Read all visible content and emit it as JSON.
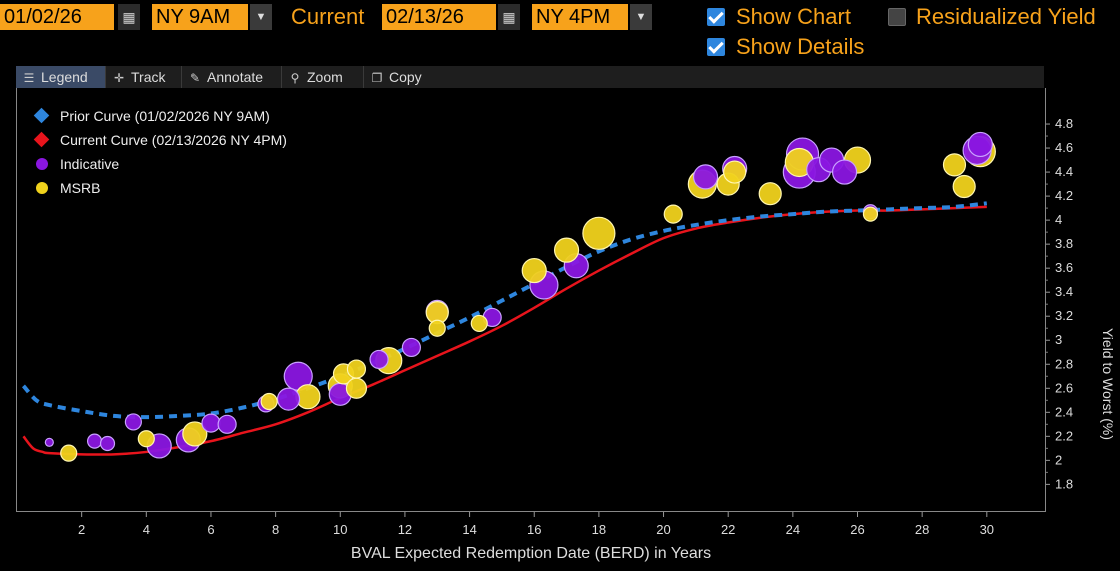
{
  "controls": {
    "start_date": "01/02/26",
    "start_time": "NY 9AM",
    "current_label": "Current",
    "end_date": "02/13/26",
    "end_time": "NY 4PM",
    "show_chart_label": "Show Chart",
    "show_chart_checked": true,
    "residualized_label": "Residualized Yield",
    "residualized_checked": false,
    "show_details_label": "Show Details",
    "show_details_checked": true
  },
  "toolbar": {
    "legend": "Legend",
    "track": "Track",
    "annotate": "Annotate",
    "zoom": "Zoom",
    "copy": "Copy"
  },
  "colors": {
    "accent": "#f7a21b",
    "prior_curve": "#2e86de",
    "current_curve": "#e8141c",
    "indicative": "#8a16e0",
    "msrb": "#f0d21c"
  },
  "chart_data": {
    "type": "scatter",
    "xlabel": "BVAL Expected Redemption Date (BERD) in Years",
    "ylabel": "Yield to Worst (%)",
    "xlim": [
      0,
      31.8
    ],
    "ylim": [
      1.57,
      5.1
    ],
    "x_ticks": [
      2,
      4,
      6,
      8,
      10,
      12,
      14,
      16,
      18,
      20,
      22,
      24,
      26,
      28,
      30
    ],
    "y_ticks": [
      1.8,
      2,
      2.2,
      2.4,
      2.6,
      2.8,
      3,
      3.2,
      3.4,
      3.6,
      3.8,
      4,
      4.2,
      4.4,
      4.6,
      4.8
    ],
    "y_tick_labels": [
      "1.8",
      "2",
      "2.2",
      "2.4",
      "2.6",
      "2.8",
      "3",
      "3.2",
      "3.4",
      "3.6",
      "3.8",
      "4",
      "4.2",
      "4.4",
      "4.6",
      "4.8"
    ],
    "legend_position": "top-left",
    "legend": [
      {
        "label": "Prior Curve (01/02/2026 NY 9AM)",
        "marker": "diamond",
        "color": "#2e86de"
      },
      {
        "label": "Current Curve (02/13/2026 NY 4PM)",
        "marker": "diamond",
        "color": "#e8141c"
      },
      {
        "label": "Indicative",
        "marker": "circle",
        "color": "#8a16e0"
      },
      {
        "label": "MSRB",
        "marker": "circle",
        "color": "#f0d21c"
      }
    ],
    "series": [
      {
        "name": "Prior Curve (01/02/2026 NY 9AM)",
        "kind": "line",
        "style": "dashed",
        "color": "#2e86de",
        "x": [
          0.2,
          0.6,
          1,
          2,
          3,
          4,
          5,
          6,
          7,
          8,
          9,
          10,
          11,
          12,
          13,
          14,
          15,
          16,
          17,
          18,
          19,
          20,
          21,
          22,
          23,
          24,
          25,
          26,
          27,
          28,
          29,
          30
        ],
        "y": [
          2.62,
          2.5,
          2.46,
          2.41,
          2.37,
          2.36,
          2.37,
          2.39,
          2.44,
          2.51,
          2.6,
          2.7,
          2.81,
          2.93,
          3.06,
          3.19,
          3.33,
          3.47,
          3.61,
          3.74,
          3.84,
          3.91,
          3.96,
          4.0,
          4.03,
          4.05,
          4.07,
          4.08,
          4.09,
          4.1,
          4.11,
          4.14
        ]
      },
      {
        "name": "Current Curve (02/13/2026 NY 4PM)",
        "kind": "line",
        "style": "solid",
        "color": "#e8141c",
        "x": [
          0.2,
          0.5,
          0.8,
          1,
          2,
          3,
          4,
          5,
          6,
          7,
          8,
          9,
          10,
          11,
          12,
          13,
          14,
          15,
          16,
          17,
          18,
          19,
          20,
          21,
          22,
          23,
          24,
          25,
          26,
          27,
          28,
          29,
          30
        ],
        "y": [
          2.2,
          2.1,
          2.07,
          2.06,
          2.05,
          2.05,
          2.07,
          2.11,
          2.16,
          2.23,
          2.3,
          2.4,
          2.52,
          2.63,
          2.75,
          2.87,
          2.99,
          3.12,
          3.27,
          3.43,
          3.58,
          3.72,
          3.85,
          3.93,
          3.98,
          4.02,
          4.05,
          4.07,
          4.08,
          4.08,
          4.09,
          4.1,
          4.11
        ]
      },
      {
        "name": "Indicative",
        "kind": "scatter",
        "color": "#8a16e0",
        "points": [
          {
            "x": 1.0,
            "y": 2.15,
            "r": 4
          },
          {
            "x": 2.4,
            "y": 2.16,
            "r": 7
          },
          {
            "x": 2.8,
            "y": 2.14,
            "r": 7
          },
          {
            "x": 3.6,
            "y": 2.32,
            "r": 8
          },
          {
            "x": 4.4,
            "y": 2.12,
            "r": 12
          },
          {
            "x": 5.3,
            "y": 2.17,
            "r": 12
          },
          {
            "x": 6.0,
            "y": 2.31,
            "r": 9
          },
          {
            "x": 6.5,
            "y": 2.3,
            "r": 9
          },
          {
            "x": 7.7,
            "y": 2.47,
            "r": 8
          },
          {
            "x": 8.4,
            "y": 2.51,
            "r": 11
          },
          {
            "x": 8.7,
            "y": 2.7,
            "r": 14
          },
          {
            "x": 10.0,
            "y": 2.55,
            "r": 11
          },
          {
            "x": 11.2,
            "y": 2.84,
            "r": 9
          },
          {
            "x": 12.2,
            "y": 2.94,
            "r": 9
          },
          {
            "x": 13.0,
            "y": 3.24,
            "r": 11
          },
          {
            "x": 14.7,
            "y": 3.19,
            "r": 9
          },
          {
            "x": 16.3,
            "y": 3.46,
            "r": 14
          },
          {
            "x": 17.3,
            "y": 3.62,
            "r": 12
          },
          {
            "x": 21.3,
            "y": 4.36,
            "r": 12
          },
          {
            "x": 22.2,
            "y": 4.43,
            "r": 12
          },
          {
            "x": 24.2,
            "y": 4.4,
            "r": 16
          },
          {
            "x": 24.3,
            "y": 4.55,
            "r": 16
          },
          {
            "x": 24.8,
            "y": 4.42,
            "r": 12
          },
          {
            "x": 25.2,
            "y": 4.5,
            "r": 12
          },
          {
            "x": 25.6,
            "y": 4.4,
            "r": 12
          },
          {
            "x": 26.4,
            "y": 4.07,
            "r": 7
          },
          {
            "x": 29.7,
            "y": 4.58,
            "r": 14
          },
          {
            "x": 29.8,
            "y": 4.63,
            "r": 12
          }
        ]
      },
      {
        "name": "MSRB",
        "kind": "scatter",
        "color": "#f0d21c",
        "points": [
          {
            "x": 1.6,
            "y": 2.06,
            "r": 8
          },
          {
            "x": 4.0,
            "y": 2.18,
            "r": 8
          },
          {
            "x": 5.5,
            "y": 2.22,
            "r": 12
          },
          {
            "x": 7.8,
            "y": 2.49,
            "r": 8
          },
          {
            "x": 9.0,
            "y": 2.53,
            "r": 12
          },
          {
            "x": 10.0,
            "y": 2.62,
            "r": 12
          },
          {
            "x": 10.1,
            "y": 2.72,
            "r": 10
          },
          {
            "x": 10.5,
            "y": 2.6,
            "r": 10
          },
          {
            "x": 10.5,
            "y": 2.76,
            "r": 9
          },
          {
            "x": 11.5,
            "y": 2.83,
            "r": 13
          },
          {
            "x": 13.0,
            "y": 3.1,
            "r": 8
          },
          {
            "x": 13.0,
            "y": 3.23,
            "r": 11
          },
          {
            "x": 14.3,
            "y": 3.14,
            "r": 8
          },
          {
            "x": 16.0,
            "y": 3.58,
            "r": 12
          },
          {
            "x": 17.0,
            "y": 3.75,
            "r": 12
          },
          {
            "x": 18.0,
            "y": 3.89,
            "r": 16
          },
          {
            "x": 20.3,
            "y": 4.05,
            "r": 9
          },
          {
            "x": 21.2,
            "y": 4.3,
            "r": 14
          },
          {
            "x": 22.0,
            "y": 4.3,
            "r": 11
          },
          {
            "x": 22.2,
            "y": 4.4,
            "r": 11
          },
          {
            "x": 23.3,
            "y": 4.22,
            "r": 11
          },
          {
            "x": 24.2,
            "y": 4.48,
            "r": 14
          },
          {
            "x": 26.0,
            "y": 4.5,
            "r": 13
          },
          {
            "x": 26.4,
            "y": 4.05,
            "r": 7
          },
          {
            "x": 29.0,
            "y": 4.46,
            "r": 11
          },
          {
            "x": 29.3,
            "y": 4.28,
            "r": 11
          },
          {
            "x": 29.8,
            "y": 4.57,
            "r": 15
          }
        ]
      }
    ]
  }
}
